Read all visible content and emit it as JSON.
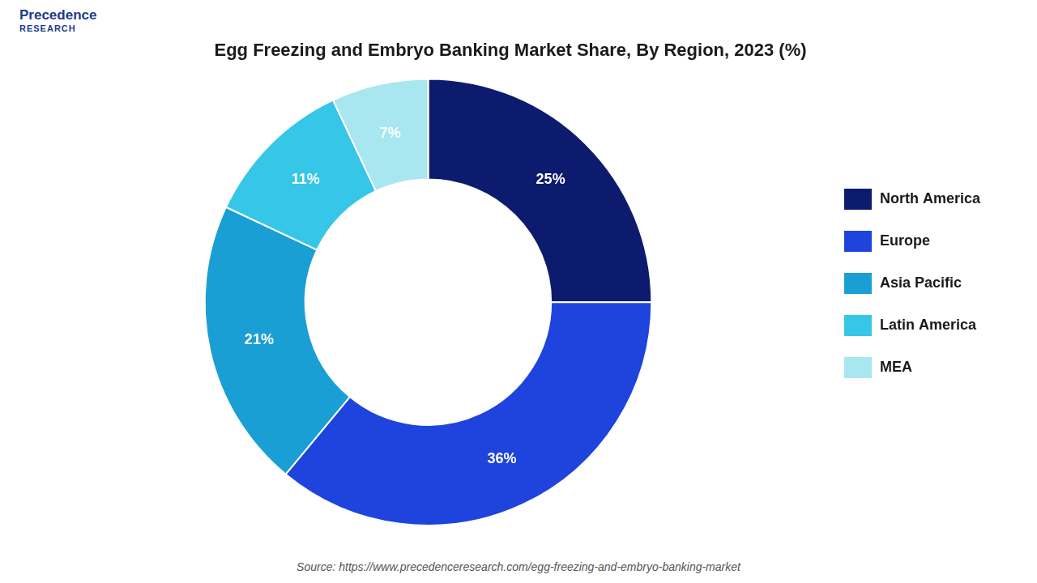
{
  "chart_data": {
    "type": "doughnut",
    "title": "Egg Freezing and Embryo Banking Market Share, By Region, 2023 (%)",
    "categories": [
      "North America",
      "Europe",
      "Asia Pacific",
      "Latin America",
      "MEA"
    ],
    "values": [
      25,
      36,
      21,
      11,
      7
    ],
    "value_labels": [
      "25%",
      "36%",
      "21%",
      "11%",
      "7%"
    ],
    "colors": [
      "#0d1b6e",
      "#1e44dd",
      "#1a9fd4",
      "#35c6e8",
      "#a8e6f0"
    ],
    "data_labels": true,
    "legend": "right",
    "annotations": [
      "Precedence",
      "RESEARCH",
      "Source: https://www.precedenceresearch.com/egg-freezing-and-embryo-banking-market"
    ]
  }
}
